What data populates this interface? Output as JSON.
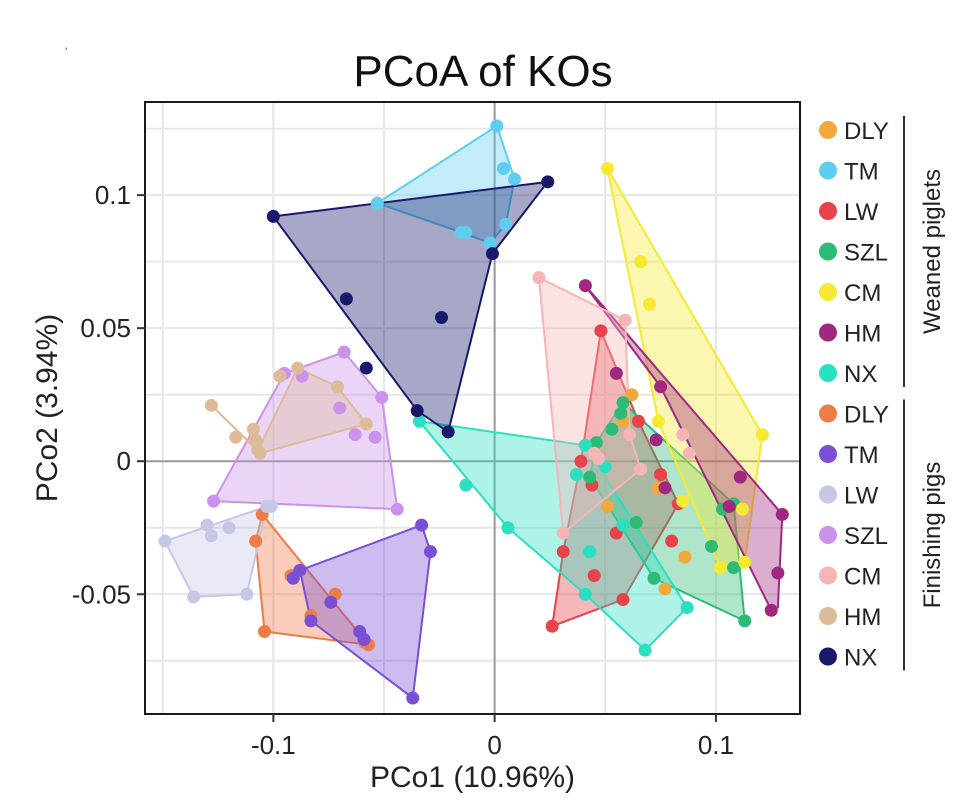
{
  "chart_data": {
    "type": "scatter",
    "title": "PCoA of KOs",
    "xlabel": "PCo1 (10.96%)",
    "ylabel": "PCo2 (3.94%)",
    "xlim": [
      -0.158,
      0.138
    ],
    "ylim": [
      -0.095,
      0.135
    ],
    "xticks": [
      -0.1,
      0,
      0.1
    ],
    "xtick_labels": [
      "-0.1",
      "0",
      "0.1"
    ],
    "yticks": [
      -0.05,
      0,
      0.05,
      0.1
    ],
    "ytick_labels": [
      "-0.05",
      "0",
      "0.05",
      "0.1"
    ],
    "grid": true,
    "zero_lines": true,
    "hulls": true,
    "legend_position": "right",
    "groups": [
      {
        "label": "Weaned piglets",
        "series": [
          {
            "name": "DLY",
            "color": "#F2A93B",
            "hull": [],
            "points": [
              [
                0.062,
                0.025
              ],
              [
                0.058,
                0.015
              ],
              [
                0.074,
                -0.01
              ],
              [
                0.086,
                -0.036
              ],
              [
                0.077,
                -0.048
              ],
              [
                0.051,
                -0.017
              ]
            ]
          },
          {
            "name": "TM",
            "color": "#5ECDEF",
            "hull": [
              [
                -0.053,
                0.097
              ],
              [
                0.001,
                0.126
              ],
              [
                0.009,
                0.106
              ],
              [
                0.005,
                0.089
              ],
              [
                -0.002,
                0.082
              ],
              [
                -0.015,
                0.086
              ]
            ],
            "points": [
              [
                -0.053,
                0.097
              ],
              [
                0.001,
                0.126
              ],
              [
                0.004,
                0.11
              ],
              [
                0.009,
                0.106
              ],
              [
                0.005,
                0.089
              ],
              [
                -0.002,
                0.082
              ],
              [
                -0.013,
                0.086
              ],
              [
                -0.015,
                0.086
              ]
            ]
          },
          {
            "name": "LW",
            "color": "#E8424A",
            "hull": [
              [
                0.048,
                0.049
              ],
              [
                0.065,
                0.015
              ],
              [
                0.083,
                -0.016
              ],
              [
                0.058,
                -0.052
              ],
              [
                0.026,
                -0.062
              ],
              [
                0.031,
                -0.034
              ],
              [
                0.039,
                0.0
              ]
            ],
            "points": [
              [
                0.048,
                0.049
              ],
              [
                0.065,
                0.015
              ],
              [
                0.075,
                -0.005
              ],
              [
                0.083,
                -0.016
              ],
              [
                0.08,
                -0.03
              ],
              [
                0.058,
                -0.052
              ],
              [
                0.026,
                -0.062
              ],
              [
                0.031,
                -0.034
              ],
              [
                0.039,
                0.0
              ],
              [
                0.044,
                -0.009
              ],
              [
                0.045,
                -0.043
              ],
              [
                0.055,
                -0.027
              ]
            ]
          },
          {
            "name": "SZL",
            "color": "#2EBB76",
            "hull": [
              [
                0.058,
                0.022
              ],
              [
                0.108,
                -0.016
              ],
              [
                0.113,
                -0.06
              ],
              [
                0.072,
                -0.044
              ],
              [
                0.043,
                -0.006
              ],
              [
                0.046,
                0.007
              ]
            ],
            "points": [
              [
                0.058,
                0.022
              ],
              [
                0.057,
                0.018
              ],
              [
                0.053,
                0.012
              ],
              [
                0.046,
                0.007
              ],
              [
                0.108,
                -0.016
              ],
              [
                0.103,
                -0.018
              ],
              [
                0.113,
                -0.06
              ],
              [
                0.108,
                -0.04
              ],
              [
                0.072,
                -0.044
              ],
              [
                0.043,
                -0.006
              ],
              [
                0.064,
                -0.023
              ],
              [
                0.098,
                -0.032
              ]
            ]
          },
          {
            "name": "CM",
            "color": "#F5E932",
            "hull": [
              [
                0.051,
                0.11
              ],
              [
                0.121,
                0.01
              ],
              [
                0.113,
                -0.038
              ],
              [
                0.102,
                -0.04
              ],
              [
                0.074,
                0.015
              ]
            ],
            "points": [
              [
                0.051,
                0.11
              ],
              [
                0.066,
                0.075
              ],
              [
                0.07,
                0.059
              ],
              [
                0.121,
                0.01
              ],
              [
                0.113,
                -0.038
              ],
              [
                0.102,
                -0.04
              ],
              [
                0.074,
                0.015
              ],
              [
                0.112,
                -0.018
              ],
              [
                0.085,
                -0.015
              ]
            ]
          },
          {
            "name": "HM",
            "color": "#A0287F",
            "hull": [
              [
                0.041,
                0.066
              ],
              [
                0.13,
                -0.02
              ],
              [
                0.128,
                -0.055
              ],
              [
                0.125,
                -0.056
              ],
              [
                0.075,
                0.028
              ]
            ],
            "points": [
              [
                0.041,
                0.066
              ],
              [
                0.13,
                -0.02
              ],
              [
                0.128,
                -0.042
              ],
              [
                0.125,
                -0.056
              ],
              [
                0.111,
                -0.006
              ],
              [
                0.106,
                -0.017
              ],
              [
                0.075,
                0.028
              ],
              [
                0.073,
                0.008
              ],
              [
                0.077,
                -0.01
              ],
              [
                0.055,
                0.033
              ]
            ]
          },
          {
            "name": "NX",
            "color": "#2AE0C0",
            "hull": [
              [
                -0.034,
                0.015
              ],
              [
                0.041,
                0.006
              ],
              [
                0.087,
                -0.055
              ],
              [
                0.068,
                -0.071
              ],
              [
                0.041,
                -0.05
              ],
              [
                0.006,
                -0.025
              ]
            ],
            "points": [
              [
                -0.034,
                0.015
              ],
              [
                0.041,
                0.006
              ],
              [
                0.087,
                -0.055
              ],
              [
                0.068,
                -0.071
              ],
              [
                0.041,
                -0.05
              ],
              [
                0.006,
                -0.025
              ],
              [
                -0.013,
                -0.009
              ],
              [
                0.037,
                -0.005
              ],
              [
                0.05,
                -0.002
              ],
              [
                0.043,
                -0.034
              ],
              [
                0.058,
                -0.024
              ]
            ]
          }
        ]
      },
      {
        "label": "Finishing pigs",
        "series": [
          {
            "name": "DLY",
            "color": "#EE7C46",
            "hull": [
              [
                -0.105,
                -0.02
              ],
              [
                -0.057,
                -0.069
              ],
              [
                -0.104,
                -0.064
              ],
              [
                -0.108,
                -0.03
              ]
            ],
            "points": [
              [
                -0.105,
                -0.02
              ],
              [
                -0.108,
                -0.03
              ],
              [
                -0.104,
                -0.064
              ],
              [
                -0.092,
                -0.043
              ],
              [
                -0.072,
                -0.05
              ],
              [
                -0.083,
                -0.058
              ],
              [
                -0.059,
                -0.068
              ],
              [
                -0.057,
                -0.069
              ]
            ]
          },
          {
            "name": "TM",
            "color": "#7A4FD6",
            "hull": [
              [
                -0.033,
                -0.024
              ],
              [
                -0.029,
                -0.034
              ],
              [
                -0.037,
                -0.089
              ],
              [
                -0.083,
                -0.06
              ],
              [
                -0.088,
                -0.041
              ]
            ],
            "points": [
              [
                -0.033,
                -0.024
              ],
              [
                -0.029,
                -0.034
              ],
              [
                -0.037,
                -0.089
              ],
              [
                -0.083,
                -0.06
              ],
              [
                -0.088,
                -0.041
              ],
              [
                -0.061,
                -0.064
              ],
              [
                -0.059,
                -0.067
              ],
              [
                -0.074,
                -0.053
              ],
              [
                -0.091,
                -0.044
              ]
            ]
          },
          {
            "name": "LW",
            "color": "#C4C7E6",
            "hull": [
              [
                -0.103,
                -0.017
              ],
              [
                -0.149,
                -0.03
              ],
              [
                -0.136,
                -0.051
              ],
              [
                -0.112,
                -0.05
              ]
            ],
            "points": [
              [
                -0.103,
                -0.017
              ],
              [
                -0.101,
                -0.017
              ],
              [
                -0.149,
                -0.03
              ],
              [
                -0.136,
                -0.051
              ],
              [
                -0.112,
                -0.05
              ],
              [
                -0.12,
                -0.025
              ],
              [
                -0.13,
                -0.024
              ],
              [
                -0.128,
                -0.028
              ]
            ]
          },
          {
            "name": "SZL",
            "color": "#CB91EB",
            "hull": [
              [
                -0.068,
                0.041
              ],
              [
                -0.051,
                0.024
              ],
              [
                -0.044,
                -0.018
              ],
              [
                -0.127,
                -0.015
              ],
              [
                -0.095,
                0.033
              ]
            ],
            "points": [
              [
                -0.068,
                0.041
              ],
              [
                -0.051,
                0.024
              ],
              [
                -0.044,
                -0.018
              ],
              [
                -0.127,
                -0.015
              ],
              [
                -0.095,
                0.033
              ],
              [
                -0.063,
                0.01
              ],
              [
                -0.054,
                0.009
              ],
              [
                -0.087,
                0.032
              ],
              [
                -0.07,
                0.02
              ]
            ]
          },
          {
            "name": "CM",
            "color": "#F5B5B5",
            "hull": [
              [
                0.02,
                0.069
              ],
              [
                0.059,
                0.053
              ],
              [
                0.061,
                0.01
              ],
              [
                0.066,
                -0.003
              ],
              [
                0.031,
                -0.027
              ]
            ],
            "points": [
              [
                0.02,
                0.069
              ],
              [
                0.059,
                0.053
              ],
              [
                0.061,
                0.01
              ],
              [
                0.066,
                -0.003
              ],
              [
                0.031,
                -0.027
              ],
              [
                0.045,
                0.003
              ],
              [
                0.047,
                0.001
              ],
              [
                0.085,
                0.01
              ],
              [
                0.088,
                0.003
              ]
            ]
          },
          {
            "name": "HM",
            "color": "#DDBB9A",
            "hull": [
              [
                -0.089,
                0.035
              ],
              [
                -0.071,
                0.028
              ],
              [
                -0.058,
                0.014
              ],
              [
                -0.106,
                0.003
              ],
              [
                -0.128,
                0.021
              ],
              [
                -0.107,
                0.004
              ]
            ],
            "points": [
              [
                -0.089,
                0.035
              ],
              [
                -0.071,
                0.028
              ],
              [
                -0.058,
                0.014
              ],
              [
                -0.106,
                0.003
              ],
              [
                -0.128,
                0.021
              ],
              [
                -0.107,
                0.004
              ],
              [
                -0.097,
                0.032
              ],
              [
                -0.109,
                0.012
              ],
              [
                -0.108,
                0.008
              ],
              [
                -0.117,
                0.009
              ]
            ]
          },
          {
            "name": "NX",
            "color": "#18196B",
            "hull": [
              [
                -0.1,
                0.092
              ],
              [
                0.024,
                0.105
              ],
              [
                -0.001,
                0.078
              ],
              [
                -0.021,
                0.011
              ],
              [
                -0.035,
                0.019
              ]
            ],
            "points": [
              [
                -0.1,
                0.092
              ],
              [
                0.024,
                0.105
              ],
              [
                -0.001,
                0.078
              ],
              [
                -0.021,
                0.011
              ],
              [
                -0.035,
                0.019
              ],
              [
                -0.067,
                0.061
              ],
              [
                -0.024,
                0.054
              ],
              [
                -0.058,
                0.035
              ]
            ]
          }
        ]
      }
    ]
  },
  "page": {
    "corner_mark": "'"
  }
}
